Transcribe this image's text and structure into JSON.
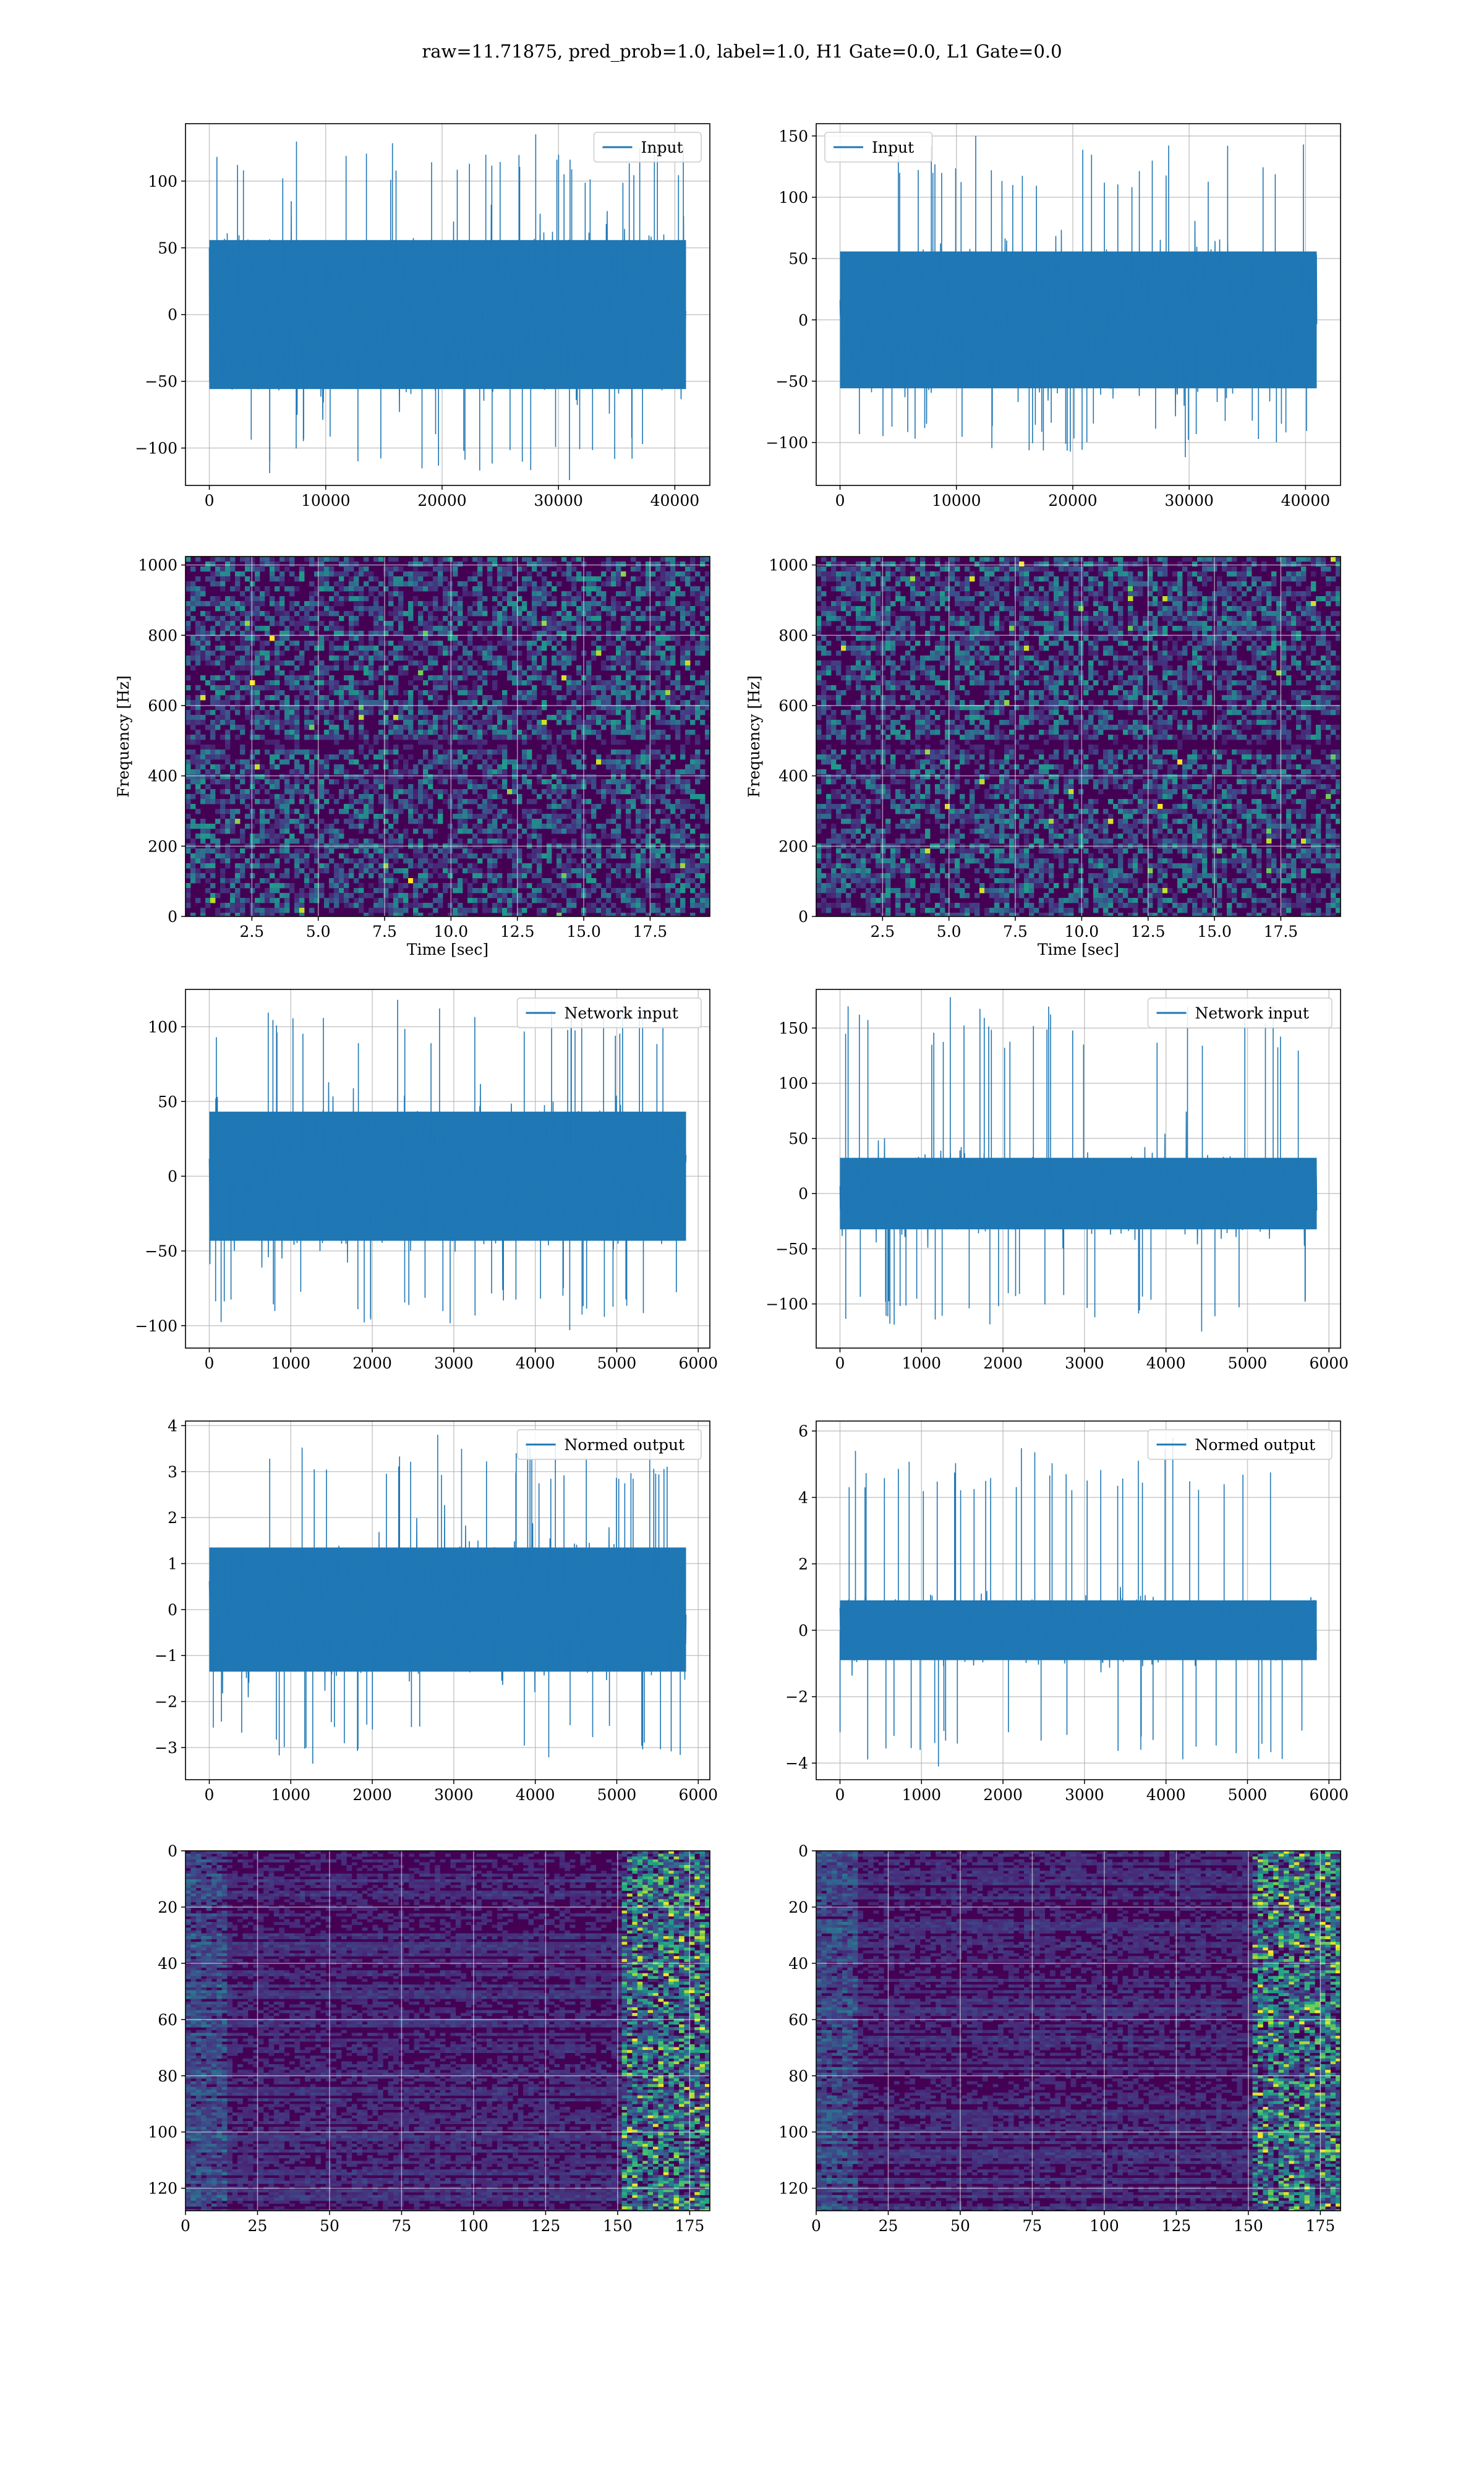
{
  "figure": {
    "title": "raw=11.71875, pred_prob=1.0, label=1.0, H1 Gate=0.0, L1 Gate=0.0"
  },
  "colors": {
    "line": "#1f77b4",
    "grid": "#b0b0b0",
    "viridis_low": "#440154",
    "viridis_mid": "#21918c",
    "viridis_high": "#fde725"
  },
  "chart_data": [
    {
      "id": "input-h1",
      "type": "line",
      "row": 0,
      "col": 0,
      "series": [
        {
          "name": "Input"
        }
      ],
      "x_range": [
        0,
        40960
      ],
      "xlim": [
        -2048,
        43008
      ],
      "ylim": [
        -128,
        143
      ],
      "xticks": [
        0,
        10000,
        20000,
        30000,
        40000
      ],
      "yticks": [
        -100,
        -50,
        0,
        50,
        100
      ],
      "band_amplitude": 62,
      "peak_max": 135,
      "peak_min": -124,
      "legend": "top-right",
      "grid": true
    },
    {
      "id": "input-l1",
      "type": "line",
      "row": 0,
      "col": 1,
      "series": [
        {
          "name": "Input"
        }
      ],
      "x_range": [
        0,
        40960
      ],
      "xlim": [
        -2048,
        43008
      ],
      "ylim": [
        -135,
        160
      ],
      "xticks": [
        0,
        10000,
        20000,
        30000,
        40000
      ],
      "yticks": [
        -100,
        -50,
        0,
        50,
        100,
        150
      ],
      "band_amplitude": 62,
      "peak_max": 150,
      "peak_min": -112,
      "legend": "top-left",
      "grid": true
    },
    {
      "id": "spectrogram-h1",
      "type": "heatmap",
      "row": 1,
      "col": 0,
      "xlabel": "Time [sec]",
      "ylabel": "Frequency [Hz]",
      "xlim": [
        0,
        19.75
      ],
      "ylim": [
        0,
        1024
      ],
      "xticks": [
        2.5,
        5.0,
        7.5,
        10.0,
        12.5,
        15.0,
        17.5
      ],
      "xtick_labels": [
        "2.5",
        "5.0",
        "7.5",
        "10.0",
        "12.5",
        "15.0",
        "17.5"
      ],
      "yticks": [
        0,
        200,
        400,
        600,
        800,
        1000
      ],
      "dark_band_hz": [
        480,
        510
      ],
      "colormap": "viridis",
      "grid": true
    },
    {
      "id": "spectrogram-l1",
      "type": "heatmap",
      "row": 1,
      "col": 1,
      "xlabel": "Time [sec]",
      "ylabel": "Frequency [Hz]",
      "xlim": [
        0,
        19.75
      ],
      "ylim": [
        0,
        1024
      ],
      "xticks": [
        2.5,
        5.0,
        7.5,
        10.0,
        12.5,
        15.0,
        17.5
      ],
      "xtick_labels": [
        "2.5",
        "5.0",
        "7.5",
        "10.0",
        "12.5",
        "15.0",
        "17.5"
      ],
      "yticks": [
        0,
        200,
        400,
        600,
        800,
        1000
      ],
      "dark_band_hz": [
        480,
        510
      ],
      "colormap": "viridis",
      "grid": true
    },
    {
      "id": "network-input-h1",
      "type": "line",
      "row": 2,
      "col": 0,
      "series": [
        {
          "name": "Network input"
        }
      ],
      "x_range": [
        0,
        5850
      ],
      "xlim": [
        -292,
        6142
      ],
      "ylim": [
        -115,
        125
      ],
      "xticks": [
        0,
        1000,
        2000,
        3000,
        4000,
        5000,
        6000
      ],
      "yticks": [
        -100,
        -50,
        0,
        50,
        100
      ],
      "band_amplitude": 48,
      "peak_max": 118,
      "peak_min": -103,
      "legend": "top-right",
      "grid": true
    },
    {
      "id": "network-input-l1",
      "type": "line",
      "row": 2,
      "col": 1,
      "series": [
        {
          "name": "Network input"
        }
      ],
      "x_range": [
        0,
        5850
      ],
      "xlim": [
        -292,
        6142
      ],
      "ylim": [
        -140,
        185
      ],
      "xticks": [
        0,
        1000,
        2000,
        3000,
        4000,
        5000,
        6000
      ],
      "yticks": [
        -100,
        -50,
        0,
        50,
        100,
        150
      ],
      "band_amplitude": 36,
      "peak_max": 178,
      "peak_min": -125,
      "legend": "top-right",
      "grid": true
    },
    {
      "id": "normed-output-h1",
      "type": "line",
      "row": 3,
      "col": 0,
      "series": [
        {
          "name": "Normed output"
        }
      ],
      "x_range": [
        0,
        5850
      ],
      "xlim": [
        -292,
        6142
      ],
      "ylim": [
        -3.7,
        4.1
      ],
      "xticks": [
        0,
        1000,
        2000,
        3000,
        4000,
        5000,
        6000
      ],
      "yticks": [
        -3,
        -2,
        -1,
        0,
        1,
        2,
        3,
        4
      ],
      "band_amplitude": 1.5,
      "peak_max": 3.8,
      "peak_min": -3.35,
      "legend": "top-right",
      "grid": true
    },
    {
      "id": "normed-output-l1",
      "type": "line",
      "row": 3,
      "col": 1,
      "series": [
        {
          "name": "Normed output"
        }
      ],
      "x_range": [
        0,
        5850
      ],
      "xlim": [
        -292,
        6142
      ],
      "ylim": [
        -4.5,
        6.3
      ],
      "xticks": [
        0,
        1000,
        2000,
        3000,
        4000,
        5000,
        6000
      ],
      "yticks": [
        -4,
        -2,
        0,
        2,
        4,
        6
      ],
      "band_amplitude": 1.0,
      "peak_max": 5.8,
      "peak_min": -4.1,
      "legend": "top-right",
      "grid": true
    },
    {
      "id": "activation-map-h1",
      "type": "heatmap",
      "row": 4,
      "col": 0,
      "xlim": [
        0,
        182
      ],
      "ylim": [
        128,
        0
      ],
      "xticks": [
        0,
        25,
        50,
        75,
        100,
        125,
        150,
        175
      ],
      "yticks": [
        0,
        20,
        40,
        60,
        80,
        100,
        120
      ],
      "bright_columns_from": 150,
      "colormap": "viridis",
      "grid": true
    },
    {
      "id": "activation-map-l1",
      "type": "heatmap",
      "row": 4,
      "col": 1,
      "xlim": [
        0,
        182
      ],
      "ylim": [
        128,
        0
      ],
      "xticks": [
        0,
        25,
        50,
        75,
        100,
        125,
        150,
        175
      ],
      "yticks": [
        0,
        20,
        40,
        60,
        80,
        100,
        120
      ],
      "bright_columns_from": 150,
      "colormap": "viridis",
      "grid": true
    }
  ]
}
